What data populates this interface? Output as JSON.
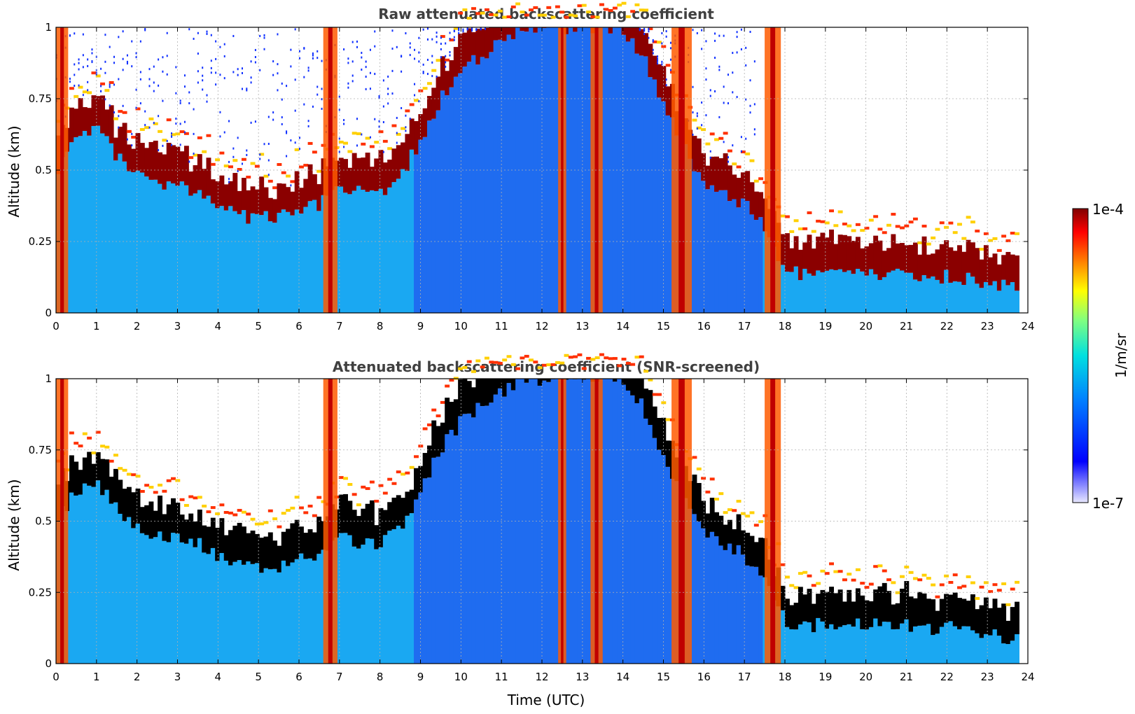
{
  "figure": {
    "xlabel": "Time (UTC)",
    "colorbar": {
      "label": "1/m/sr",
      "max_label": "1e-4",
      "min_label": "1e-7",
      "colormap": "jet",
      "scale": "log",
      "range": [
        1e-07,
        0.0001
      ]
    }
  },
  "chart_data": [
    {
      "type": "heatmap",
      "title": "Raw attenuated backscattering coefficient",
      "ylabel": "Altitude (km)",
      "xlabel": "",
      "xlim": [
        0,
        24
      ],
      "ylim": [
        0,
        1
      ],
      "grid": true,
      "xticks": [
        "0",
        "1",
        "2",
        "3",
        "4",
        "5",
        "6",
        "7",
        "8",
        "9",
        "10",
        "11",
        "12",
        "13",
        "14",
        "15",
        "16",
        "17",
        "18",
        "19",
        "20",
        "21",
        "22",
        "23",
        "24"
      ],
      "yticks": [
        "0",
        "0.25",
        "0.5",
        "0.75",
        "1"
      ],
      "cloud_base_km": {
        "time_utc": [
          0,
          0.5,
          1,
          1.5,
          2,
          2.5,
          3,
          3.5,
          4,
          4.5,
          5,
          5.5,
          6,
          6.5,
          7,
          7.5,
          8,
          8.5,
          9,
          9.5,
          10,
          10.5,
          11,
          11.5,
          12,
          12.5,
          13,
          13.5,
          14,
          14.5,
          15,
          15.5,
          16,
          16.5,
          17,
          17.5,
          18,
          18.5,
          19,
          19.5,
          20,
          20.5,
          21,
          21.5,
          22,
          22.5,
          23,
          23.5,
          23.8
        ],
        "altitude": [
          0.5,
          0.6,
          0.64,
          0.55,
          0.48,
          0.45,
          0.44,
          0.42,
          0.38,
          0.34,
          0.33,
          0.34,
          0.37,
          0.38,
          0.45,
          0.42,
          0.42,
          0.48,
          0.6,
          0.75,
          0.85,
          0.9,
          0.95,
          1.0,
          1.0,
          1.0,
          1.0,
          1.0,
          1.0,
          0.9,
          0.72,
          0.6,
          0.45,
          0.42,
          0.38,
          0.3,
          0.15,
          0.13,
          0.14,
          0.13,
          0.14,
          0.13,
          0.14,
          0.12,
          0.13,
          0.12,
          0.1,
          0.09,
          0.1
        ]
      },
      "precipitation_bands_utc": [
        [
          0.0,
          0.3
        ],
        [
          6.6,
          6.95
        ],
        [
          12.4,
          12.6
        ],
        [
          13.2,
          13.5
        ],
        [
          15.2,
          15.7
        ],
        [
          17.5,
          17.9
        ]
      ]
    },
    {
      "type": "heatmap",
      "title": "Attenuated backscattering coefficient (SNR-screened)",
      "ylabel": "Altitude (km)",
      "xlabel": "Time (UTC)",
      "xlim": [
        0,
        24
      ],
      "ylim": [
        0,
        1
      ],
      "grid": true,
      "xticks": [
        "0",
        "1",
        "2",
        "3",
        "4",
        "5",
        "6",
        "7",
        "8",
        "9",
        "10",
        "11",
        "12",
        "13",
        "14",
        "15",
        "16",
        "17",
        "18",
        "19",
        "20",
        "21",
        "22",
        "23",
        "24"
      ],
      "yticks": [
        "0",
        "0.25",
        "0.5",
        "0.75",
        "1"
      ],
      "cloud_base_km": {
        "time_utc": [
          0,
          0.5,
          1,
          1.5,
          2,
          2.5,
          3,
          3.5,
          4,
          4.5,
          5,
          5.5,
          6,
          6.5,
          7,
          7.5,
          8,
          8.5,
          9,
          9.5,
          10,
          10.5,
          11,
          11.5,
          12,
          12.5,
          13,
          13.5,
          14,
          14.5,
          15,
          15.5,
          16,
          16.5,
          17,
          17.5,
          18,
          18.5,
          19,
          19.5,
          20,
          20.5,
          21,
          21.5,
          22,
          22.5,
          23,
          23.5,
          23.8
        ],
        "altitude": [
          0.5,
          0.6,
          0.64,
          0.55,
          0.48,
          0.45,
          0.44,
          0.42,
          0.38,
          0.34,
          0.33,
          0.34,
          0.37,
          0.38,
          0.45,
          0.42,
          0.42,
          0.48,
          0.6,
          0.75,
          0.85,
          0.9,
          0.95,
          1.0,
          1.0,
          1.0,
          1.0,
          1.0,
          1.0,
          0.9,
          0.72,
          0.6,
          0.45,
          0.42,
          0.38,
          0.3,
          0.15,
          0.13,
          0.14,
          0.13,
          0.14,
          0.13,
          0.14,
          0.12,
          0.13,
          0.12,
          0.1,
          0.09,
          0.1
        ]
      },
      "precipitation_bands_utc": [
        [
          0.0,
          0.3
        ],
        [
          6.6,
          6.95
        ],
        [
          12.4,
          12.6
        ],
        [
          13.2,
          13.5
        ],
        [
          15.2,
          15.7
        ],
        [
          17.5,
          17.9
        ]
      ],
      "saturated_core_color": "#000000"
    }
  ]
}
